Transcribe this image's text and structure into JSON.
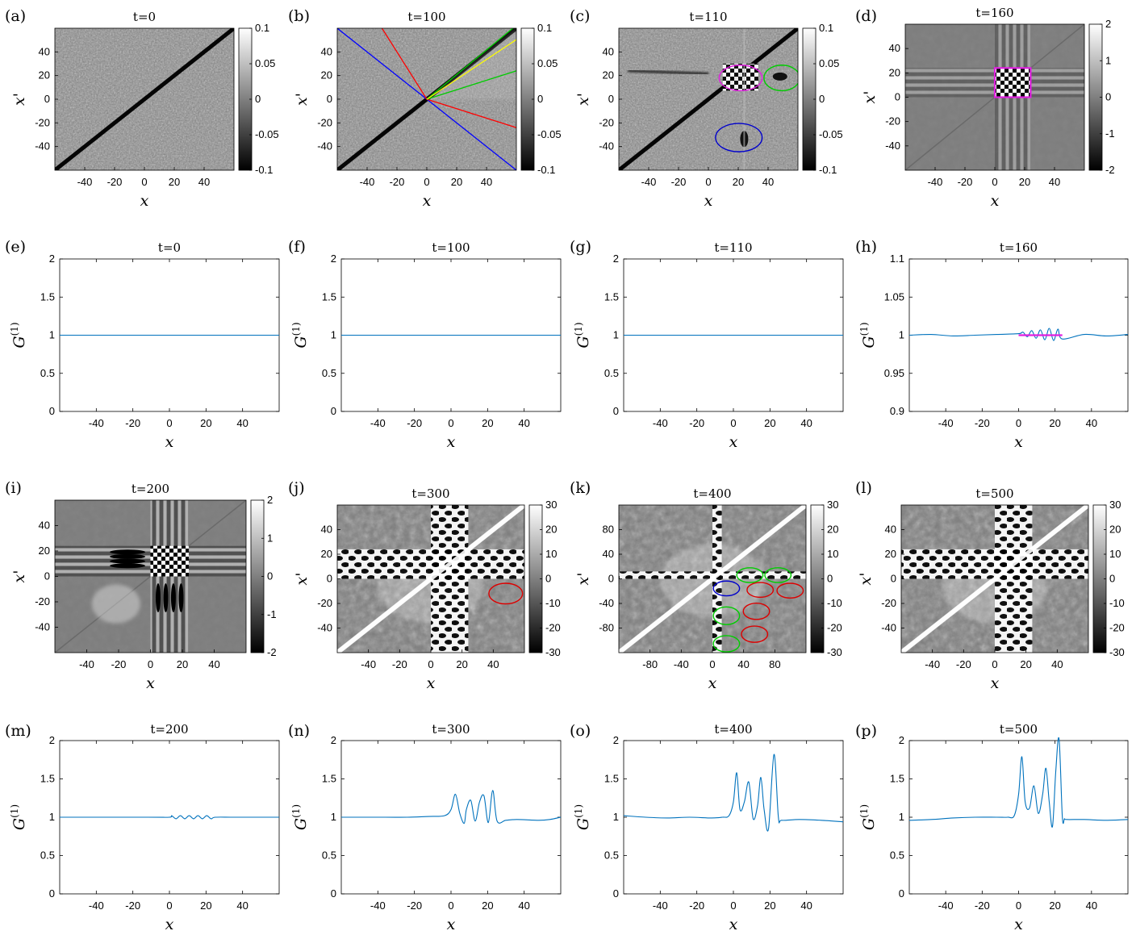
{
  "figure": {
    "panels": [
      {
        "id": "a",
        "letter": "(a)",
        "title": "t=0",
        "kind": "heatmap",
        "xticks": [
          "-40",
          "-20",
          "0",
          "20",
          "40"
        ],
        "yticks": [
          "40",
          "20",
          "0",
          "-20",
          "-40"
        ],
        "xlabel": "x",
        "ylabel": "x'",
        "colorbar": [
          "0.1",
          "0.05",
          "0",
          "-0.05",
          "-0.1"
        ]
      },
      {
        "id": "b",
        "letter": "(b)",
        "title": "t=100",
        "kind": "heatmap",
        "xticks": [
          "-40",
          "-20",
          "0",
          "20",
          "40"
        ],
        "yticks": [
          "40",
          "20",
          "0",
          "-20",
          "-40"
        ],
        "xlabel": "x",
        "ylabel": "x'",
        "colorbar": [
          "0.1",
          "0.05",
          "0",
          "-0.05",
          "-0.1"
        ]
      },
      {
        "id": "c",
        "letter": "(c)",
        "title": "t=110",
        "kind": "heatmap",
        "xticks": [
          "-40",
          "-20",
          "0",
          "20",
          "40"
        ],
        "yticks": [
          "40",
          "20",
          "0",
          "-20",
          "-40"
        ],
        "xlabel": "x",
        "ylabel": "x'",
        "colorbar": [
          "0.1",
          "0.05",
          "0",
          "-0.05",
          "-0.1"
        ]
      },
      {
        "id": "d",
        "letter": "(d)",
        "title": "t=160",
        "kind": "heatmap",
        "xticks": [
          "-40",
          "-20",
          "0",
          "20",
          "40"
        ],
        "yticks": [
          "40",
          "20",
          "0",
          "-20",
          "-40"
        ],
        "xlabel": "x",
        "ylabel": "x'",
        "colorbar": [
          "2",
          "1",
          "0",
          "-1",
          "-2"
        ]
      },
      {
        "id": "e",
        "letter": "(e)",
        "title": "t=0",
        "kind": "line",
        "xticks": [
          "-40",
          "-20",
          "0",
          "20",
          "40"
        ],
        "yticks": [
          "2",
          "1.5",
          "1",
          "0.5",
          "0"
        ],
        "xlabel": "x",
        "ylabel": "G(1)"
      },
      {
        "id": "f",
        "letter": "(f)",
        "title": "t=100",
        "kind": "line",
        "xticks": [
          "-40",
          "-20",
          "0",
          "20",
          "40"
        ],
        "yticks": [
          "2",
          "1.5",
          "1",
          "0.5",
          "0"
        ],
        "xlabel": "x",
        "ylabel": "G(1)"
      },
      {
        "id": "g",
        "letter": "(g)",
        "title": "t=110",
        "kind": "line",
        "xticks": [
          "-40",
          "-20",
          "0",
          "20",
          "40"
        ],
        "yticks": [
          "2",
          "1.5",
          "1",
          "0.5",
          "0"
        ],
        "xlabel": "x",
        "ylabel": "G(1)"
      },
      {
        "id": "h",
        "letter": "(h)",
        "title": "t=160",
        "kind": "line",
        "xticks": [
          "-40",
          "-20",
          "0",
          "20",
          "40"
        ],
        "yticks": [
          "1.1",
          "1.05",
          "1",
          "0.95",
          "0.9"
        ],
        "xlabel": "x",
        "ylabel": "G(1)"
      },
      {
        "id": "i",
        "letter": "(i)",
        "title": "t=200",
        "kind": "heatmap",
        "xticks": [
          "-40",
          "-20",
          "0",
          "20",
          "40"
        ],
        "yticks": [
          "40",
          "20",
          "0",
          "-20",
          "-40"
        ],
        "xlabel": "x",
        "ylabel": "x'",
        "colorbar": [
          "2",
          "1",
          "0",
          "-1",
          "-2"
        ]
      },
      {
        "id": "j",
        "letter": "(j)",
        "title": "t=300",
        "kind": "heatmap",
        "xticks": [
          "-40",
          "-20",
          "0",
          "20",
          "40"
        ],
        "yticks": [
          "40",
          "20",
          "0",
          "-20",
          "-40"
        ],
        "xlabel": "x",
        "ylabel": "x'",
        "colorbar": [
          "30",
          "20",
          "10",
          "0",
          "-10",
          "-20",
          "-30"
        ]
      },
      {
        "id": "k",
        "letter": "(k)",
        "title": "t=400",
        "kind": "heatmap",
        "xticks": [
          "-80",
          "-40",
          "0",
          "40",
          "80"
        ],
        "yticks": [
          "80",
          "40",
          "0",
          "-40",
          "-80"
        ],
        "xlabel": "x",
        "ylabel": "x'",
        "colorbar": [
          "30",
          "20",
          "10",
          "0",
          "-10",
          "-20",
          "-30"
        ]
      },
      {
        "id": "l",
        "letter": "(l)",
        "title": "t=500",
        "kind": "heatmap",
        "xticks": [
          "-40",
          "-20",
          "0",
          "20",
          "40"
        ],
        "yticks": [
          "40",
          "20",
          "0",
          "-20",
          "-40"
        ],
        "xlabel": "x",
        "ylabel": "x'",
        "colorbar": [
          "30",
          "20",
          "10",
          "0",
          "-10",
          "-20",
          "-30"
        ]
      },
      {
        "id": "m",
        "letter": "(m)",
        "title": "t=200",
        "kind": "line",
        "xticks": [
          "-40",
          "-20",
          "0",
          "20",
          "40"
        ],
        "yticks": [
          "2",
          "1.5",
          "1",
          "0.5",
          "0"
        ],
        "xlabel": "x",
        "ylabel": "G(1)"
      },
      {
        "id": "n",
        "letter": "(n)",
        "title": "t=300",
        "kind": "line",
        "xticks": [
          "-40",
          "-20",
          "0",
          "20",
          "40"
        ],
        "yticks": [
          "2",
          "1.5",
          "1",
          "0.5",
          "0"
        ],
        "xlabel": "x",
        "ylabel": "G(1)"
      },
      {
        "id": "o",
        "letter": "(o)",
        "title": "t=400",
        "kind": "line",
        "xticks": [
          "-40",
          "-20",
          "0",
          "20",
          "40"
        ],
        "yticks": [
          "2",
          "1.5",
          "1",
          "0.5",
          "0"
        ],
        "xlabel": "x",
        "ylabel": "G(1)"
      },
      {
        "id": "p",
        "letter": "(p)",
        "title": "t=500",
        "kind": "line",
        "xticks": [
          "-40",
          "-20",
          "0",
          "20",
          "40"
        ],
        "yticks": [
          "2",
          "1.5",
          "1",
          "0.5",
          "0"
        ],
        "xlabel": "x",
        "ylabel": "G(1)"
      }
    ]
  },
  "chart_data": [
    {
      "panel": "a",
      "type": "heatmap",
      "title": "t=0",
      "xlabel": "x",
      "ylabel": "x'",
      "xlim": [
        -50,
        50
      ],
      "ylim": [
        -50,
        50
      ],
      "clim": [
        -0.1,
        0.1
      ],
      "features": {
        "diagonal": "dark",
        "noise": "fine"
      }
    },
    {
      "panel": "b",
      "type": "heatmap",
      "title": "t=100",
      "xlabel": "x",
      "ylabel": "x'",
      "xlim": [
        -50,
        50
      ],
      "ylim": [
        -50,
        50
      ],
      "clim": [
        -0.1,
        0.1
      ],
      "rays": [
        {
          "color": "#0000ff",
          "x": [
            -50,
            50
          ],
          "y": [
            50,
            -50
          ]
        },
        {
          "color": "#ff0000",
          "x": [
            -25,
            0,
            50
          ],
          "y": [
            50,
            0,
            -20
          ]
        },
        {
          "color": "#00cc00",
          "x": [
            0,
            50
          ],
          "y": [
            0,
            52
          ]
        },
        {
          "color": "#00cc00",
          "x": [
            0,
            50
          ],
          "y": [
            0,
            20
          ]
        },
        {
          "color": "#ffff00",
          "x": [
            0,
            50
          ],
          "y": [
            0,
            42
          ]
        }
      ]
    },
    {
      "panel": "c",
      "type": "heatmap",
      "title": "t=110",
      "xlabel": "x",
      "ylabel": "x'",
      "xlim": [
        -50,
        50
      ],
      "ylim": [
        -50,
        50
      ],
      "clim": [
        -0.1,
        0.1
      ],
      "ellipses": [
        {
          "color": "#e020e0",
          "cx": 18,
          "cy": 15,
          "rx": 12,
          "ry": 9
        },
        {
          "color": "#00cc00",
          "cx": 41,
          "cy": 15,
          "rx": 10,
          "ry": 9
        },
        {
          "color": "#0000cc",
          "cx": 17,
          "cy": -27,
          "rx": 13,
          "ry": 10
        }
      ]
    },
    {
      "panel": "d",
      "type": "heatmap",
      "title": "t=160",
      "xlabel": "x",
      "ylabel": "x'",
      "xlim": [
        -50,
        50
      ],
      "ylim": [
        -50,
        50
      ],
      "clim": [
        -2,
        2
      ],
      "rect": {
        "color": "#e020e0",
        "x": [
          0,
          20
        ],
        "y": [
          0,
          20
        ]
      }
    },
    {
      "panel": "e",
      "type": "line",
      "title": "t=0",
      "xlabel": "x",
      "ylabel": "G(1)",
      "xlim": [
        -50,
        50
      ],
      "ylim": [
        0,
        2
      ],
      "series": [
        {
          "x": [
            -50,
            50
          ],
          "y": [
            1,
            1
          ]
        }
      ]
    },
    {
      "panel": "f",
      "type": "line",
      "title": "t=100",
      "xlabel": "x",
      "ylabel": "G(1)",
      "xlim": [
        -50,
        50
      ],
      "ylim": [
        0,
        2
      ],
      "series": [
        {
          "x": [
            -50,
            50
          ],
          "y": [
            1,
            1
          ]
        }
      ]
    },
    {
      "panel": "g",
      "type": "line",
      "title": "t=110",
      "xlabel": "x",
      "ylabel": "G(1)",
      "xlim": [
        -50,
        50
      ],
      "ylim": [
        0,
        2
      ],
      "series": [
        {
          "x": [
            -50,
            50
          ],
          "y": [
            1,
            1
          ]
        }
      ]
    },
    {
      "panel": "h",
      "type": "line",
      "title": "t=160",
      "xlabel": "x",
      "ylabel": "G(1)",
      "xlim": [
        -50,
        50
      ],
      "ylim": [
        0.9,
        1.1
      ],
      "series": [
        {
          "x": [
            -50,
            -40,
            -30,
            -20,
            -10,
            0,
            2,
            4,
            6,
            8,
            10,
            12,
            14,
            16,
            18,
            20,
            30,
            40,
            50
          ],
          "y": [
            1.0,
            1.001,
            0.999,
            1.0,
            1.001,
            1.002,
            1.004,
            0.998,
            1.006,
            0.996,
            1.007,
            0.994,
            1.009,
            0.993,
            1.008,
            0.995,
            1.001,
            0.999,
            1.001
          ]
        }
      ],
      "highlight": {
        "color": "#e020e0",
        "x": [
          0,
          20
        ]
      }
    },
    {
      "panel": "i",
      "type": "heatmap",
      "title": "t=200",
      "xlabel": "x",
      "ylabel": "x'",
      "xlim": [
        -50,
        50
      ],
      "ylim": [
        -50,
        50
      ],
      "clim": [
        -2,
        2
      ]
    },
    {
      "panel": "j",
      "type": "heatmap",
      "title": "t=300",
      "xlabel": "x",
      "ylabel": "x'",
      "xlim": [
        -50,
        50
      ],
      "ylim": [
        -50,
        50
      ],
      "clim": [
        -30,
        30
      ],
      "ellipses": [
        {
          "color": "#dd0000",
          "cx": 40,
          "cy": -10,
          "rx": 9,
          "ry": 7
        }
      ]
    },
    {
      "panel": "k",
      "type": "heatmap",
      "title": "t=400",
      "xlabel": "x",
      "ylabel": "x'",
      "xlim": [
        -100,
        100
      ],
      "ylim": [
        -100,
        100
      ],
      "clim": [
        -30,
        30
      ],
      "ellipses": [
        {
          "color": "#00cc00",
          "cx": 40,
          "cy": 5,
          "rx": 14,
          "ry": 10
        },
        {
          "color": "#00cc00",
          "cx": 70,
          "cy": 5,
          "rx": 14,
          "ry": 10
        },
        {
          "color": "#0000cc",
          "cx": 15,
          "cy": -13,
          "rx": 14,
          "ry": 10
        },
        {
          "color": "#dd0000",
          "cx": 51,
          "cy": -15,
          "rx": 14,
          "ry": 10
        },
        {
          "color": "#dd0000",
          "cx": 83,
          "cy": -16,
          "rx": 14,
          "ry": 10
        },
        {
          "color": "#00cc00",
          "cx": 15,
          "cy": -50,
          "rx": 14,
          "ry": 12
        },
        {
          "color": "#dd0000",
          "cx": 47,
          "cy": -44,
          "rx": 14,
          "ry": 11
        },
        {
          "color": "#00cc00",
          "cx": 15,
          "cy": -88,
          "rx": 14,
          "ry": 11
        },
        {
          "color": "#dd0000",
          "cx": 45,
          "cy": -75,
          "rx": 14,
          "ry": 11
        }
      ]
    },
    {
      "panel": "l",
      "type": "heatmap",
      "title": "t=500",
      "xlabel": "x",
      "ylabel": "x'",
      "xlim": [
        -50,
        50
      ],
      "ylim": [
        -50,
        50
      ],
      "clim": [
        -30,
        30
      ]
    },
    {
      "panel": "m",
      "type": "line",
      "title": "t=200",
      "xlabel": "x",
      "ylabel": "G(1)",
      "xlim": [
        -50,
        50
      ],
      "ylim": [
        0,
        2
      ],
      "series": [
        {
          "x": [
            -50,
            -10,
            0,
            1,
            3,
            5,
            7,
            9,
            11,
            13,
            15,
            17,
            19,
            21,
            30,
            50
          ],
          "y": [
            1,
            1,
            1,
            1.02,
            0.98,
            1.02,
            0.98,
            1.02,
            0.98,
            1.02,
            0.98,
            1.02,
            0.98,
            1.0,
            1.0,
            1.0
          ]
        }
      ]
    },
    {
      "panel": "n",
      "type": "line",
      "title": "t=300",
      "xlabel": "x",
      "ylabel": "G(1)",
      "xlim": [
        -50,
        50
      ],
      "ylim": [
        0,
        2
      ],
      "series": [
        {
          "x": [
            -50,
            -30,
            -20,
            -10,
            -3,
            0,
            2,
            4,
            6,
            7,
            9,
            11,
            13,
            15,
            17,
            19,
            21,
            25,
            30,
            40,
            45,
            50
          ],
          "y": [
            1,
            1,
            1,
            1.01,
            1.02,
            1.1,
            1.3,
            1.05,
            0.92,
            1.1,
            1.22,
            0.95,
            1.2,
            1.28,
            0.93,
            1.35,
            0.95,
            0.96,
            0.97,
            0.96,
            0.97,
            1.0
          ]
        }
      ]
    },
    {
      "panel": "o",
      "type": "line",
      "title": "t=400",
      "xlabel": "x",
      "ylabel": "G(1)",
      "xlim": [
        -50,
        50
      ],
      "ylim": [
        0,
        2
      ],
      "series": [
        {
          "x": [
            -50,
            -40,
            -30,
            -20,
            -10,
            -5,
            -2,
            0,
            1.5,
            3,
            5,
            7,
            9,
            11,
            12.5,
            14,
            16,
            18.5,
            20.5,
            22,
            30,
            40,
            50
          ],
          "y": [
            1.02,
            1.0,
            0.99,
            1.0,
            0.99,
            1.0,
            1.02,
            1.2,
            1.58,
            1.1,
            1.2,
            1.46,
            0.98,
            1.15,
            1.52,
            1.1,
            0.85,
            1.82,
            1.0,
            0.96,
            0.97,
            0.96,
            0.94
          ]
        }
      ]
    },
    {
      "panel": "p",
      "type": "line",
      "title": "t=500",
      "xlabel": "x",
      "ylabel": "G(1)",
      "xlim": [
        -50,
        50
      ],
      "ylim": [
        0,
        2
      ],
      "series": [
        {
          "x": [
            -50,
            -40,
            -30,
            -20,
            -10,
            -5,
            -2,
            0,
            1.5,
            3,
            5,
            7,
            9,
            11,
            12.5,
            14,
            15.5,
            17,
            18.5,
            20,
            21,
            22,
            30,
            40,
            50
          ],
          "y": [
            0.96,
            0.97,
            0.99,
            1.0,
            1.0,
            1.0,
            1.02,
            1.3,
            1.79,
            1.2,
            1.12,
            1.41,
            1.05,
            1.3,
            1.64,
            1.2,
            0.88,
            1.6,
            2.02,
            1.0,
            0.98,
            0.97,
            0.97,
            0.96,
            0.97
          ]
        }
      ]
    }
  ]
}
